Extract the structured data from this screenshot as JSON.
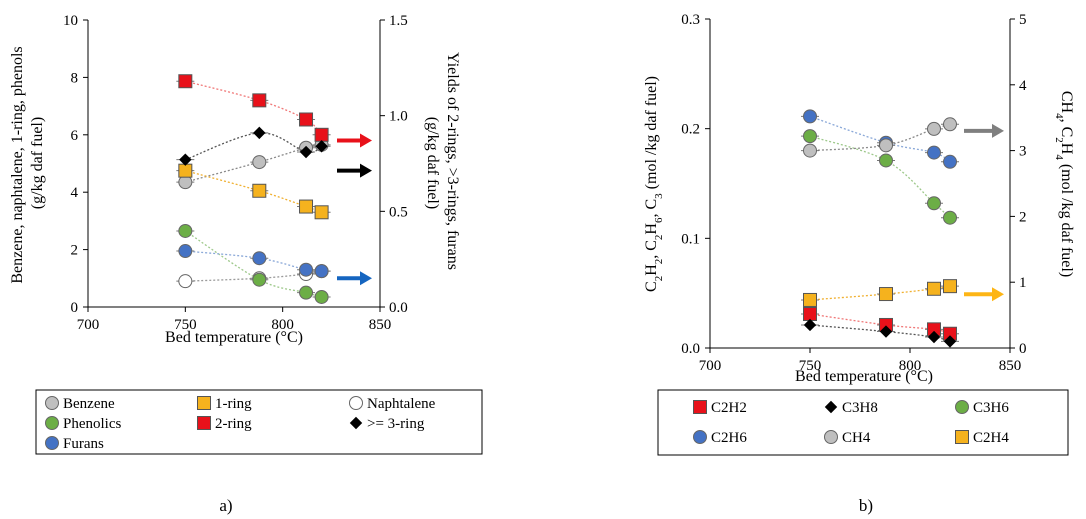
{
  "chart_data": [
    {
      "type": "scatter",
      "panel_label": "a)",
      "xlabel": "Bed temperature (°C)",
      "ylabel": "Benzene, naphtalene, 1-ring, phenols (g/kg daf fuel)",
      "ylabel_lines": [
        "Benzene, naphtalene, 1-ring, phenols",
        "(g/kg daf fuel)"
      ],
      "y2label": "Yields of 2-rings, >3-rings, furans (g/kg daf fuel)",
      "y2label_lines": [
        "Yields of 2-rings, >3-rings, furans",
        "(g/kg daf fuel)"
      ],
      "xlim": [
        700,
        850
      ],
      "xticks": [
        "700",
        "750",
        "800",
        "850"
      ],
      "ylim": [
        0,
        10
      ],
      "yticks": [
        "0",
        "2",
        "4",
        "6",
        "8",
        "10"
      ],
      "y2lim": [
        0,
        1.5
      ],
      "y2ticks": [
        "0.0",
        "0.5",
        "1.0",
        "1.5"
      ],
      "grid": false,
      "legend_position": "bottom",
      "series": [
        {
          "name": "Benzene",
          "axis": "left",
          "marker": "circle",
          "color": "#bfbfbf",
          "line_color": "#8a8a8a",
          "x": [
            750,
            788,
            812,
            820
          ],
          "y": [
            4.35,
            5.05,
            5.55,
            5.65
          ]
        },
        {
          "name": "1-ring",
          "axis": "left",
          "marker": "square",
          "color": "#f5b21e",
          "line_color": "#f0b030",
          "x": [
            750,
            788,
            812,
            820
          ],
          "y": [
            4.75,
            4.05,
            3.5,
            3.3
          ]
        },
        {
          "name": "Naphtalene",
          "axis": "left",
          "marker": "circle",
          "color": "#ffffff",
          "line_color": "#9a9a9a",
          "x": [
            750,
            788,
            812,
            820
          ],
          "y": [
            0.9,
            1.0,
            1.15,
            1.25
          ]
        },
        {
          "name": "Phenolics",
          "axis": "left",
          "marker": "circle",
          "color": "#6cae46",
          "line_color": "#9dc88a",
          "x": [
            750,
            788,
            812,
            820
          ],
          "y": [
            2.65,
            0.95,
            0.5,
            0.35
          ]
        },
        {
          "name": "2-ring",
          "axis": "right",
          "marker": "square",
          "color": "#e8111a",
          "line_color": "#f07878",
          "x": [
            750,
            788,
            812,
            820
          ],
          "y": [
            1.18,
            1.08,
            0.98,
            0.9
          ]
        },
        {
          "name": ">= 3-ring",
          "axis": "right",
          "marker": "diamond",
          "color": "#000000",
          "line_color": "#555555",
          "x": [
            750,
            788,
            812,
            820
          ],
          "y": [
            0.77,
            0.91,
            0.81,
            0.84
          ]
        },
        {
          "name": "Furans",
          "axis": "left",
          "marker": "circle",
          "color": "#4472c4",
          "line_color": "#8aa8d8",
          "x": [
            750,
            788,
            812,
            820
          ],
          "y": [
            1.95,
            1.7,
            1.3,
            1.25
          ]
        }
      ],
      "arrows": [
        {
          "color": "#e8111a",
          "y": 5.8
        },
        {
          "color": "#000000",
          "y": 4.75
        },
        {
          "color": "#1565c0",
          "y": 1.0
        }
      ],
      "legend_rows": [
        [
          "Benzene",
          "1-ring",
          "Naphtalene"
        ],
        [
          "Phenolics",
          "2-ring",
          ">= 3-ring"
        ],
        [
          "Furans"
        ]
      ]
    },
    {
      "type": "scatter",
      "panel_label": "b)",
      "xlabel": "Bed temperature (°C)",
      "ylabel": "C2H2, C2H6, C3 (mol /kg daf fuel)",
      "y2label": "CH4, C2H4 (mol /kg daf fuel)",
      "xlim": [
        700,
        850
      ],
      "xticks": [
        "700",
        "750",
        "800",
        "850"
      ],
      "ylim": [
        0,
        0.3
      ],
      "yticks": [
        "0.0",
        "0.1",
        "0.2",
        "0.3"
      ],
      "y2lim": [
        0,
        5
      ],
      "y2ticks": [
        "0",
        "1",
        "2",
        "3",
        "4",
        "5"
      ],
      "grid": false,
      "legend_position": "bottom",
      "series": [
        {
          "name": "C2H2",
          "axis": "left",
          "marker": "square",
          "color": "#e8111a",
          "line_color": "#f07878",
          "x": [
            750,
            788,
            812,
            820
          ],
          "y": [
            0.031,
            0.021,
            0.017,
            0.013
          ]
        },
        {
          "name": "C3H8",
          "axis": "left",
          "marker": "diamond",
          "color": "#000000",
          "line_color": "#555555",
          "x": [
            750,
            788,
            812,
            820
          ],
          "y": [
            0.021,
            0.015,
            0.01,
            0.006
          ]
        },
        {
          "name": "C3H6",
          "axis": "right",
          "marker": "circle",
          "color": "#6cae46",
          "line_color": "#9dc88a",
          "x": [
            750,
            788,
            812,
            820
          ],
          "y": [
            3.22,
            2.85,
            2.2,
            1.98
          ]
        },
        {
          "name": "C2H6",
          "axis": "right",
          "marker": "circle",
          "color": "#4472c4",
          "line_color": "#8aa8d8",
          "x": [
            750,
            788,
            812,
            820
          ],
          "y": [
            3.52,
            3.12,
            2.97,
            2.83
          ]
        },
        {
          "name": "CH4",
          "axis": "right",
          "marker": "circle",
          "color": "#bfbfbf",
          "line_color": "#8a8a8a",
          "x": [
            750,
            788,
            812,
            820
          ],
          "y": [
            3.0,
            3.08,
            3.33,
            3.4
          ]
        },
        {
          "name": "C2H4",
          "axis": "right",
          "marker": "square",
          "color": "#f5b21e",
          "line_color": "#f0b030",
          "x": [
            750,
            788,
            812,
            820
          ],
          "y": [
            0.73,
            0.82,
            0.9,
            0.94
          ]
        }
      ],
      "arrows": [
        {
          "color": "#7f7f7f",
          "y": 0.198
        },
        {
          "color": "#fdb515",
          "y": 0.049
        }
      ],
      "legend_rows": [
        [
          "C2H2",
          "C3H8",
          "C3H6"
        ],
        [
          "C2H6",
          "CH4",
          "C2H4"
        ]
      ]
    }
  ]
}
